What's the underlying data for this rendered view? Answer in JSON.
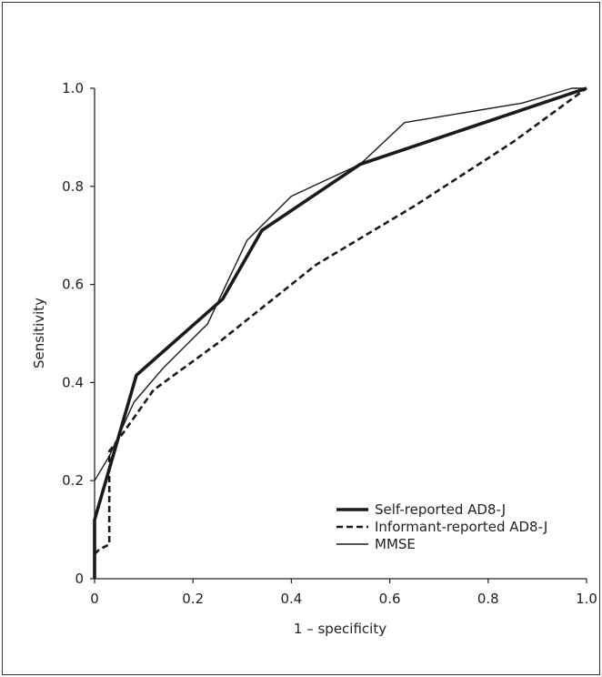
{
  "chart_data": {
    "type": "line",
    "title": "",
    "xlabel": "1 – specificity",
    "ylabel": "Sensitivity",
    "xlim": [
      0,
      1
    ],
    "ylim": [
      0,
      1
    ],
    "xticks": [
      "0",
      "0.2",
      "0.4",
      "0.6",
      "0.8",
      "1.0"
    ],
    "yticks": [
      "0",
      "0.2",
      "0.4",
      "0.6",
      "0.8",
      "1.0"
    ],
    "grid": false,
    "legend_position": "bottom-right",
    "series": [
      {
        "name": "Self-reported AD8-J",
        "style": "thick-solid",
        "x": [
          0,
          0,
          0.085,
          0.26,
          0.34,
          0.54,
          1.0
        ],
        "y": [
          0,
          0.12,
          0.415,
          0.57,
          0.71,
          0.845,
          1.0
        ]
      },
      {
        "name": "Informant-reported AD8-J",
        "style": "dashed",
        "x": [
          0,
          0.01,
          0.03,
          0.03,
          0.06,
          0.12,
          0.25,
          0.45,
          0.65,
          0.85,
          1.0
        ],
        "y": [
          0.05,
          0.06,
          0.07,
          0.26,
          0.3,
          0.385,
          0.48,
          0.64,
          0.76,
          0.89,
          1.0
        ]
      },
      {
        "name": "MMSE",
        "style": "thin-solid",
        "x": [
          0,
          0.03,
          0.08,
          0.14,
          0.23,
          0.31,
          0.4,
          0.54,
          0.63,
          0.87,
          0.97,
          1.0
        ],
        "y": [
          0.2,
          0.25,
          0.36,
          0.43,
          0.52,
          0.69,
          0.78,
          0.845,
          0.93,
          0.97,
          1.0,
          1.0
        ]
      }
    ]
  }
}
